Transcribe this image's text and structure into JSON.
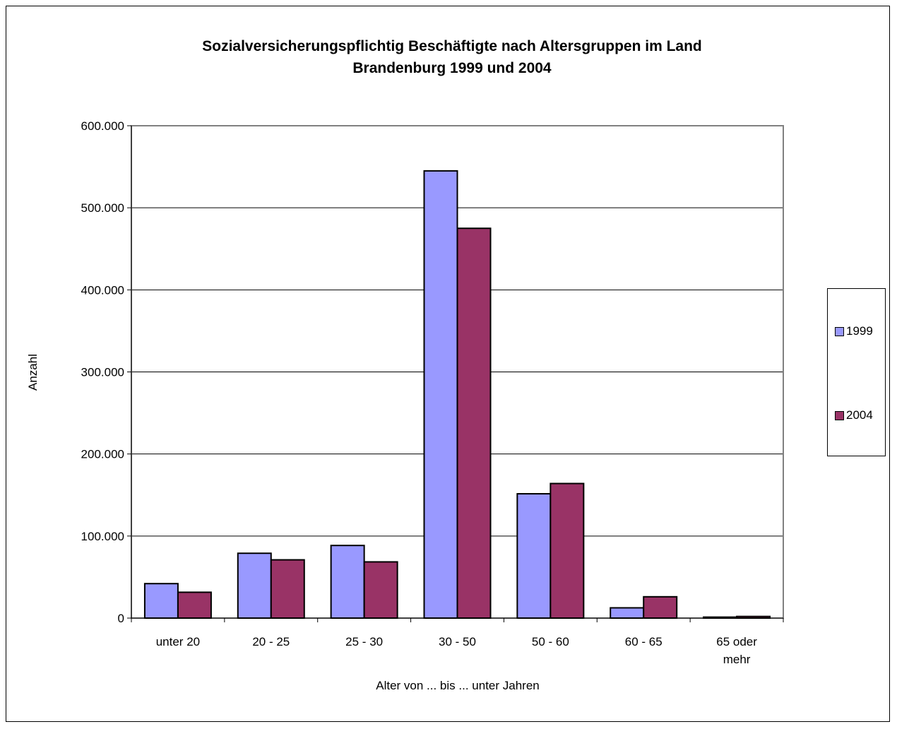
{
  "chart_data": {
    "type": "bar",
    "title": [
      "Sozialversicherungspflichtig Beschäftigte nach Altersgruppen im Land",
      "Brandenburg 1999 und 2004"
    ],
    "xlabel": "Alter von ... bis ... unter Jahren",
    "ylabel": "Anzahl",
    "ylim": [
      0,
      600000
    ],
    "yticks": [
      0,
      100000,
      200000,
      300000,
      400000,
      500000,
      600000
    ],
    "ytick_labels": [
      "0",
      "100.000",
      "200.000",
      "300.000",
      "400.000",
      "500.000",
      "600.000"
    ],
    "categories": [
      [
        "unter 20"
      ],
      [
        "20 - 25"
      ],
      [
        "25 - 30"
      ],
      [
        "30 - 50"
      ],
      [
        "50 - 60"
      ],
      [
        "60 - 65"
      ],
      [
        "65 oder",
        "mehr"
      ]
    ],
    "series": [
      {
        "name": "1999",
        "color": "#9999ff",
        "values": [
          42000,
          79000,
          88500,
          545000,
          151500,
          12500,
          1200
        ]
      },
      {
        "name": "2004",
        "color": "#993366",
        "values": [
          31500,
          71000,
          68500,
          475000,
          164000,
          26000,
          2000
        ]
      }
    ],
    "grid": true,
    "legend_position": "right"
  }
}
